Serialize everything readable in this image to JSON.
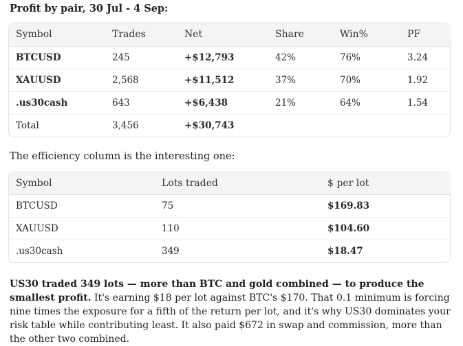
{
  "heading": "Profit by pair, 30 Jul - 4 Sep:",
  "pair_table": {
    "headers": [
      "Symbol",
      "Trades",
      "Net",
      "Share",
      "Win%",
      "PF"
    ],
    "rows": [
      [
        "BTCUSD",
        "245",
        "+$12,793",
        "42%",
        "76%",
        "3.24"
      ],
      [
        "XAUUSD",
        "2,568",
        "+$11,512",
        "37%",
        "70%",
        "1.92"
      ],
      [
        ".us30cash",
        "643",
        "+$6,438",
        "21%",
        "64%",
        "1.54"
      ]
    ],
    "total": [
      "Total",
      "3,456",
      "+$30,743",
      "",
      "",
      ""
    ]
  },
  "intro": "The efficiency column is the interesting one:",
  "efficiency_table": {
    "headers": [
      "Symbol",
      "Lots traded",
      "$ per lot"
    ],
    "rows": [
      [
        "BTCUSD",
        "75",
        "$169.83"
      ],
      [
        "XAUUSD",
        "110",
        "$104.60"
      ],
      [
        ".us30cash",
        "349",
        "$18.47"
      ]
    ]
  },
  "summary": {
    "lead": "US30 traded 349 lots — more than BTC and gold combined — to produce the smallest profit.",
    "body": "It's earning $18 per lot against BTC's $170. That 0.1 minimum is forcing nine times the exposure for a fifth of the return per lot, and it's why US30 dominates your risk table while contributing least. It also paid $672 in swap and commission, more than the other two combined."
  }
}
